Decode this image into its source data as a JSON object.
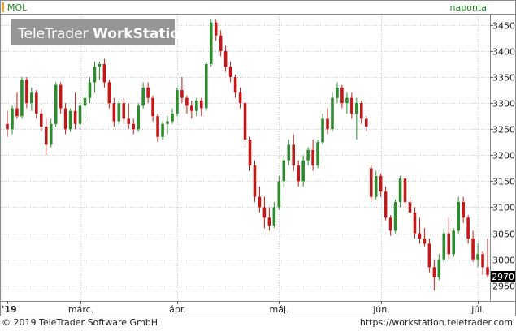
{
  "header": {
    "symbol": "MOL",
    "interval": "naponta"
  },
  "watermark": {
    "brand_light": "TeleTrader",
    "brand_bold": "WorkStation"
  },
  "footer": {
    "copyright": "© 2019 TeleTrader Software GmbH",
    "url": "https://workstation.teletrader.com"
  },
  "colors": {
    "up": "#2e8b2e",
    "down": "#c41818",
    "grid": "#c8c8c8",
    "accent": "#f0a030"
  },
  "chart_data": {
    "type": "candlestick",
    "ylim": [
      2920,
      3470
    ],
    "yticks": [
      2950,
      3000,
      3050,
      3100,
      3150,
      3200,
      3250,
      3300,
      3350,
      3400,
      3450
    ],
    "xticks": [
      {
        "label": "'19",
        "index": 0
      },
      {
        "label": "márc.",
        "index": 15
      },
      {
        "label": "ápr.",
        "index": 35
      },
      {
        "label": "máj.",
        "index": 56
      },
      {
        "label": "jún.",
        "index": 77
      },
      {
        "label": "júl.",
        "index": 97
      }
    ],
    "last_value": 2970,
    "candles": [
      [
        3260,
        3285,
        3235,
        3250
      ],
      [
        3250,
        3295,
        3240,
        3290
      ],
      [
        3290,
        3320,
        3270,
        3275
      ],
      [
        3275,
        3350,
        3270,
        3345
      ],
      [
        3345,
        3350,
        3290,
        3300
      ],
      [
        3300,
        3330,
        3285,
        3320
      ],
      [
        3320,
        3325,
        3270,
        3280
      ],
      [
        3280,
        3290,
        3245,
        3255
      ],
      [
        3255,
        3270,
        3200,
        3220
      ],
      [
        3220,
        3270,
        3215,
        3260
      ],
      [
        3260,
        3340,
        3255,
        3335
      ],
      [
        3335,
        3340,
        3280,
        3290
      ],
      [
        3290,
        3300,
        3240,
        3250
      ],
      [
        3250,
        3290,
        3245,
        3285
      ],
      [
        3285,
        3320,
        3250,
        3260
      ],
      [
        3260,
        3300,
        3255,
        3295
      ],
      [
        3295,
        3320,
        3270,
        3310
      ],
      [
        3310,
        3350,
        3300,
        3340
      ],
      [
        3340,
        3380,
        3320,
        3370
      ],
      [
        3370,
        3380,
        3345,
        3375
      ],
      [
        3375,
        3385,
        3330,
        3340
      ],
      [
        3340,
        3345,
        3290,
        3300
      ],
      [
        3300,
        3310,
        3255,
        3265
      ],
      [
        3265,
        3305,
        3260,
        3300
      ],
      [
        3300,
        3310,
        3260,
        3270
      ],
      [
        3270,
        3300,
        3250,
        3260
      ],
      [
        3260,
        3270,
        3240,
        3250
      ],
      [
        3250,
        3300,
        3245,
        3295
      ],
      [
        3295,
        3340,
        3290,
        3330
      ],
      [
        3330,
        3340,
        3300,
        3310
      ],
      [
        3310,
        3315,
        3265,
        3275
      ],
      [
        3275,
        3280,
        3225,
        3235
      ],
      [
        3235,
        3265,
        3230,
        3260
      ],
      [
        3260,
        3275,
        3240,
        3265
      ],
      [
        3265,
        3290,
        3260,
        3280
      ],
      [
        3280,
        3330,
        3275,
        3325
      ],
      [
        3325,
        3350,
        3300,
        3310
      ],
      [
        3310,
        3315,
        3280,
        3295
      ],
      [
        3295,
        3305,
        3270,
        3285
      ],
      [
        3285,
        3310,
        3275,
        3305
      ],
      [
        3305,
        3310,
        3275,
        3290
      ],
      [
        3290,
        3380,
        3285,
        3375
      ],
      [
        3375,
        3460,
        3370,
        3455
      ],
      [
        3455,
        3460,
        3420,
        3430
      ],
      [
        3430,
        3440,
        3390,
        3400
      ],
      [
        3400,
        3410,
        3360,
        3370
      ],
      [
        3370,
        3380,
        3340,
        3350
      ],
      [
        3350,
        3355,
        3310,
        3320
      ],
      [
        3320,
        3330,
        3290,
        3300
      ],
      [
        3300,
        3305,
        3220,
        3230
      ],
      [
        3230,
        3235,
        3170,
        3180
      ],
      [
        3180,
        3190,
        3110,
        3120
      ],
      [
        3120,
        3140,
        3090,
        3100
      ],
      [
        3100,
        3120,
        3060,
        3080
      ],
      [
        3080,
        3100,
        3055,
        3065
      ],
      [
        3065,
        3110,
        3060,
        3100
      ],
      [
        3100,
        3160,
        3095,
        3150
      ],
      [
        3150,
        3200,
        3140,
        3190
      ],
      [
        3190,
        3230,
        3180,
        3220
      ],
      [
        3220,
        3240,
        3170,
        3180
      ],
      [
        3180,
        3190,
        3140,
        3150
      ],
      [
        3150,
        3200,
        3140,
        3190
      ],
      [
        3190,
        3215,
        3180,
        3210
      ],
      [
        3210,
        3230,
        3170,
        3180
      ],
      [
        3180,
        3230,
        3175,
        3225
      ],
      [
        3225,
        3280,
        3220,
        3270
      ],
      [
        3270,
        3290,
        3240,
        3250
      ],
      [
        3250,
        3320,
        3245,
        3310
      ],
      [
        3310,
        3340,
        3300,
        3330
      ],
      [
        3330,
        3335,
        3290,
        3300
      ],
      [
        3300,
        3320,
        3280,
        3310
      ],
      [
        3310,
        3320,
        3270,
        3280
      ],
      [
        3280,
        3310,
        3230,
        3300
      ],
      [
        3300,
        3305,
        3260,
        3270
      ],
      [
        3270,
        3275,
        3245,
        3255
      ],
      [
        3175,
        3180,
        3110,
        3120
      ],
      [
        3120,
        3170,
        3115,
        3160
      ],
      [
        3160,
        3165,
        3120,
        3130
      ],
      [
        3130,
        3140,
        3075,
        3080
      ],
      [
        3080,
        3085,
        3045,
        3055
      ],
      [
        3055,
        3115,
        3050,
        3110
      ],
      [
        3110,
        3160,
        3100,
        3155
      ],
      [
        3155,
        3160,
        3100,
        3110
      ],
      [
        3110,
        3120,
        3080,
        3090
      ],
      [
        3090,
        3100,
        3040,
        3050
      ],
      [
        3050,
        3080,
        3030,
        3040
      ],
      [
        3040,
        3060,
        3025,
        3030
      ],
      [
        3030,
        3040,
        2975,
        2985
      ],
      [
        2985,
        3000,
        2940,
        2965
      ],
      [
        2965,
        3010,
        2960,
        3000
      ],
      [
        3000,
        3060,
        2995,
        3050
      ],
      [
        3050,
        3080,
        3000,
        3010
      ],
      [
        3010,
        3060,
        3005,
        3055
      ],
      [
        3055,
        3120,
        3050,
        3110
      ],
      [
        3110,
        3120,
        3070,
        3080
      ],
      [
        3080,
        3085,
        3030,
        3040
      ],
      [
        3040,
        3055,
        2995,
        3000
      ],
      [
        3000,
        3030,
        2985,
        3010
      ],
      [
        3010,
        3015,
        2970,
        2985
      ],
      [
        2985,
        3040,
        2965,
        2970
      ]
    ]
  }
}
